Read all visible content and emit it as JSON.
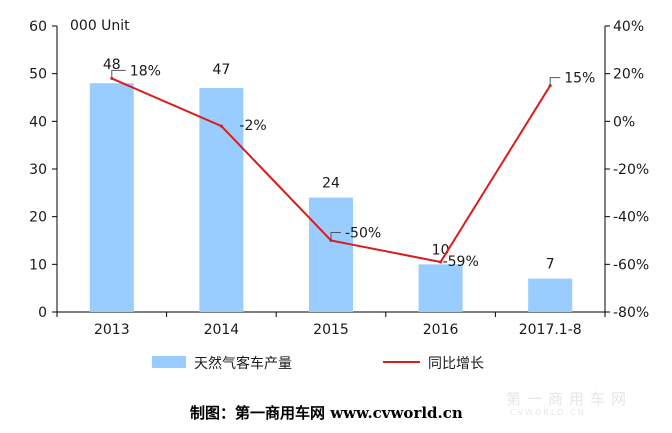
{
  "chart_data": {
    "type": "bar+line",
    "unit_label": "000 Unit",
    "categories": [
      "2013",
      "2014",
      "2015",
      "2016",
      "2017.1-8"
    ],
    "series": [
      {
        "name": "天然气客车产量",
        "type": "bar",
        "axis": "left",
        "color": "#99ccff",
        "values": [
          48,
          47,
          24,
          10,
          7
        ],
        "labels": [
          "48",
          "47",
          "24",
          "10",
          "7"
        ]
      },
      {
        "name": "同比增长",
        "type": "line",
        "axis": "right",
        "color": "#d91c1c",
        "values": [
          18,
          -2,
          -50,
          -59,
          15
        ],
        "labels": [
          "18%",
          "-2%",
          "-50%",
          "-59%",
          "15%"
        ]
      }
    ],
    "y_left": {
      "min": 0,
      "max": 60,
      "step": 10,
      "ticks": [
        "0",
        "10",
        "20",
        "30",
        "40",
        "50",
        "60"
      ]
    },
    "y_right": {
      "min": -80,
      "max": 40,
      "step": 20,
      "ticks": [
        "-80%",
        "-60%",
        "-40%",
        "-20%",
        "0%",
        "20%",
        "40%"
      ]
    },
    "legend_position": "bottom",
    "grid": false
  },
  "caption": "制图：第一商用车网 www.cvworld.cn",
  "watermark": {
    "main": "第一商用车网",
    "sub": "CVWORLD.CN"
  }
}
